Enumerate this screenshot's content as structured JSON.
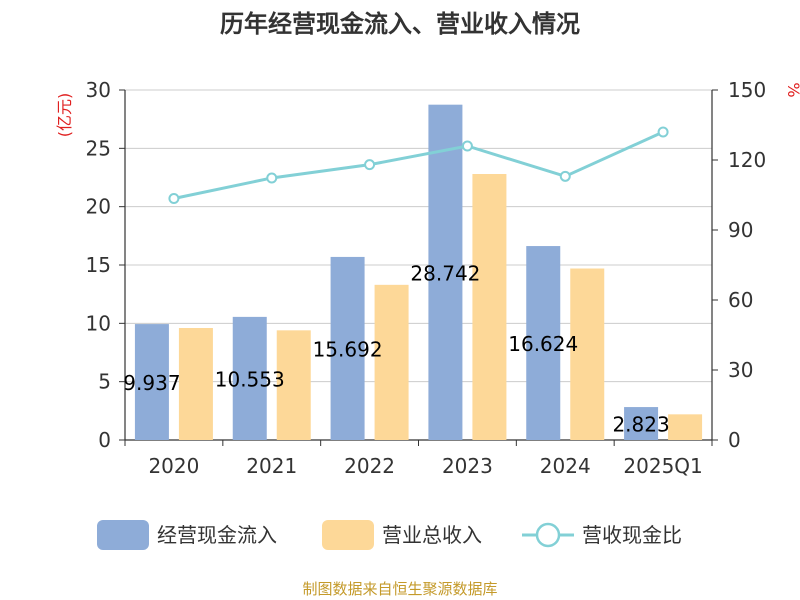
{
  "chart_data": {
    "type": "bar",
    "title": "历年经营现金流入、营业收入情况",
    "categories": [
      "2020",
      "2021",
      "2022",
      "2023",
      "2024",
      "2025Q1"
    ],
    "left_axis": {
      "unit": "(亿元)",
      "ylim": [
        0,
        30
      ],
      "ticks": [
        0,
        5,
        10,
        15,
        20,
        25,
        30
      ]
    },
    "right_axis": {
      "unit": "%",
      "ylim": [
        0,
        150
      ],
      "ticks": [
        0,
        30,
        60,
        90,
        120,
        150
      ]
    },
    "grid": true,
    "legend_position": "bottom",
    "series": [
      {
        "name": "经营现金流入",
        "type": "bar",
        "axis": "left",
        "color": "#8eacd8",
        "values": [
          9.937,
          10.553,
          15.692,
          28.742,
          16.624,
          2.823
        ],
        "labels": [
          "9.937",
          "10.553",
          "15.692",
          "28.742",
          "16.624",
          "2.823"
        ]
      },
      {
        "name": "营业总收入",
        "type": "bar",
        "axis": "left",
        "color": "#fdd898",
        "values": [
          9.6,
          9.4,
          13.3,
          22.8,
          14.7,
          2.2
        ]
      },
      {
        "name": "营收现金比",
        "type": "line",
        "axis": "right",
        "color": "#82d0d6",
        "values": [
          103.5,
          112.3,
          118.0,
          126.0,
          113.0,
          132.0
        ]
      }
    ]
  },
  "source": "制图数据来自恒生聚源数据库"
}
